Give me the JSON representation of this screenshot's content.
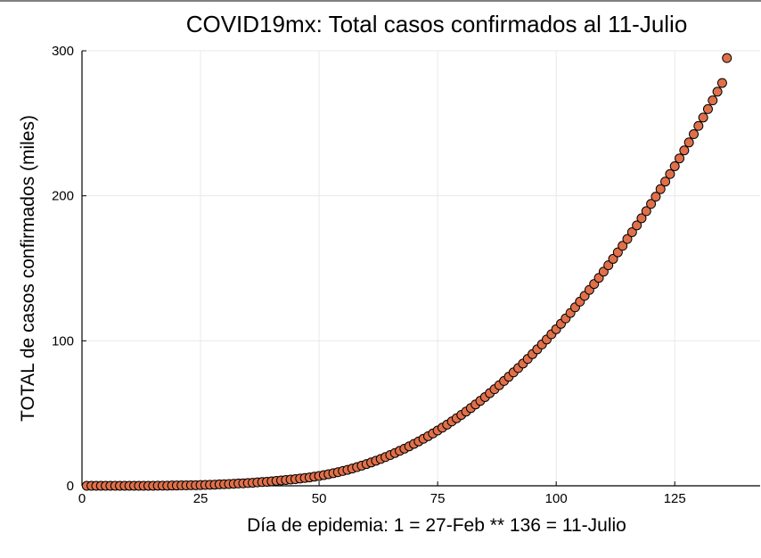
{
  "chart_data": {
    "type": "scatter",
    "title": "COVID19mx: Total casos confirmados al 11-Julio",
    "xlabel": "Día de epidemia: 1 = 27-Feb ** 136 = 11-Julio",
    "ylabel": "TOTAL de casos confirmados (miles)",
    "xlim": [
      0,
      143
    ],
    "ylim": [
      0,
      300
    ],
    "xticks": [
      0,
      25,
      50,
      75,
      100,
      125
    ],
    "yticks": [
      0,
      100,
      200,
      300
    ],
    "xtick_labels": [
      "0",
      "25",
      "50",
      "75",
      "100",
      "125"
    ],
    "ytick_labels": [
      "0",
      "100",
      "200",
      "300"
    ],
    "grid": true,
    "legend": "none",
    "x": [
      1,
      2,
      3,
      4,
      5,
      6,
      7,
      8,
      9,
      10,
      11,
      12,
      13,
      14,
      15,
      16,
      17,
      18,
      19,
      20,
      21,
      22,
      23,
      24,
      25,
      26,
      27,
      28,
      29,
      30,
      31,
      32,
      33,
      34,
      35,
      36,
      37,
      38,
      39,
      40,
      41,
      42,
      43,
      44,
      45,
      46,
      47,
      48,
      49,
      50,
      51,
      52,
      53,
      54,
      55,
      56,
      57,
      58,
      59,
      60,
      61,
      62,
      63,
      64,
      65,
      66,
      67,
      68,
      69,
      70,
      71,
      72,
      73,
      74,
      75,
      76,
      77,
      78,
      79,
      80,
      81,
      82,
      83,
      84,
      85,
      86,
      87,
      88,
      89,
      90,
      91,
      92,
      93,
      94,
      95,
      96,
      97,
      98,
      99,
      100,
      101,
      102,
      103,
      104,
      105,
      106,
      107,
      108,
      109,
      110,
      111,
      112,
      113,
      114,
      115,
      116,
      117,
      118,
      119,
      120,
      121,
      122,
      123,
      124,
      125,
      126,
      127,
      128,
      129,
      130,
      131,
      132,
      133,
      134,
      135,
      136
    ],
    "y": [
      0.0,
      0.0,
      0.0,
      0.0,
      0.0,
      0.0,
      0.0,
      0.0,
      0.0,
      0.0,
      0.0,
      0.0,
      0.0,
      0.0,
      0.0,
      0.1,
      0.1,
      0.1,
      0.2,
      0.2,
      0.3,
      0.3,
      0.4,
      0.4,
      0.5,
      0.6,
      0.7,
      0.8,
      1.0,
      1.1,
      1.2,
      1.4,
      1.6,
      1.7,
      1.9,
      2.1,
      2.4,
      2.6,
      2.8,
      3.1,
      3.4,
      3.7,
      4.0,
      4.3,
      4.6,
      5.0,
      5.4,
      5.8,
      6.3,
      6.8,
      7.4,
      8.0,
      8.7,
      9.4,
      10.2,
      11.0,
      11.9,
      12.9,
      13.9,
      15.0,
      16.1,
      17.3,
      18.5,
      19.8,
      21.2,
      22.6,
      24.1,
      25.6,
      27.2,
      28.9,
      30.6,
      32.4,
      34.2,
      36.1,
      38.1,
      40.1,
      42.2,
      44.4,
      46.6,
      48.9,
      51.2,
      53.6,
      56.1,
      58.6,
      61.2,
      63.9,
      66.6,
      69.4,
      72.3,
      75.2,
      78.2,
      81.2,
      84.3,
      87.5,
      90.8,
      94.1,
      97.5,
      100.9,
      104.5,
      108.0,
      111.7,
      115.4,
      119.2,
      123.1,
      127.0,
      131.0,
      135.1,
      139.2,
      143.4,
      147.7,
      152.1,
      156.5,
      161.0,
      165.5,
      170.2,
      174.9,
      179.6,
      184.5,
      189.4,
      194.4,
      199.4,
      204.6,
      209.8,
      215.0,
      220.4,
      225.8,
      231.3,
      236.8,
      242.5,
      248.2,
      254.0,
      259.8,
      265.8,
      271.8,
      277.8,
      295.0
    ]
  },
  "colors": {
    "marker_fill": "#e0704a",
    "marker_stroke": "#000000",
    "axis": "#000000",
    "grid": "#e9e9e9"
  }
}
